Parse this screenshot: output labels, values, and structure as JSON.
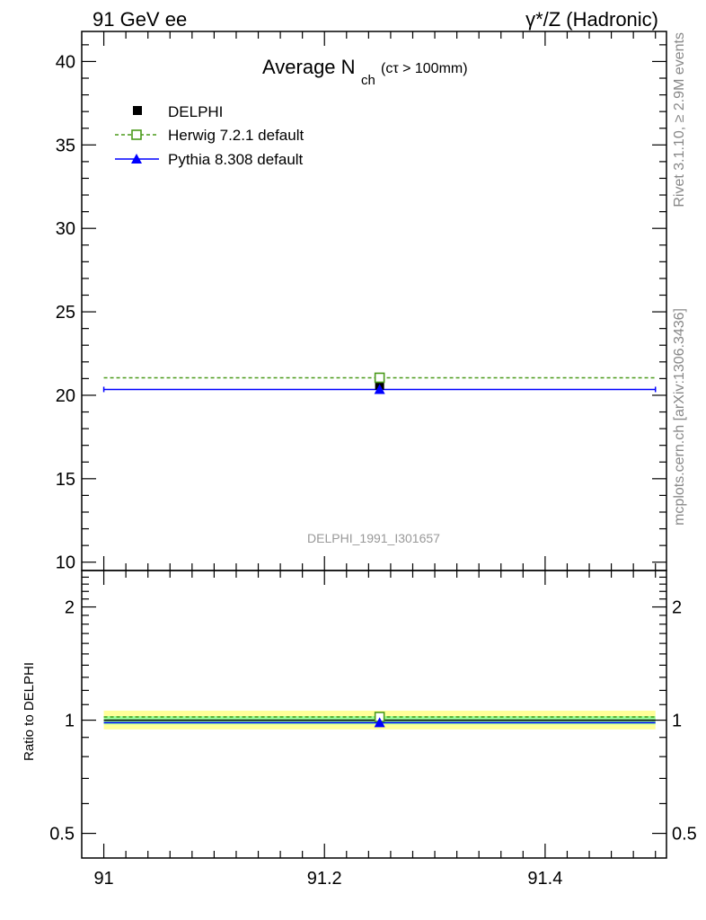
{
  "header": {
    "left": "91 GeV ee",
    "right": "γ*/Z (Hadronic)"
  },
  "title": {
    "main": "Average N",
    "sub": "ch",
    "cut": "(cτ > 100mm)"
  },
  "side_labels": {
    "rivet": "Rivet 3.1.10, ≥ 2.9M events",
    "source": "mcplots.cern.ch [arXiv:1306.3436]"
  },
  "analysis_id": "DELPHI_1991_I301657",
  "ratio_ylabel": "Ratio to DELPHI",
  "legend": [
    {
      "label": "DELPHI",
      "marker": "filled-square"
    },
    {
      "label": "Herwig 7.2.1 default",
      "marker": "open-square-dashed"
    },
    {
      "label": "Pythia 8.308 default",
      "marker": "filled-triangle"
    }
  ],
  "colors": {
    "data": "#000000",
    "herwig": "#4a9a1a",
    "pythia": "#0000ff",
    "band_outer": "#ffff99",
    "band_inner": "#99ff99"
  },
  "chart_data": [
    {
      "type": "scatter",
      "panel": "main",
      "xlim": [
        90.98,
        91.51
      ],
      "ylim": [
        9.5,
        41.8
      ],
      "xticks": [
        91,
        91.2,
        91.4
      ],
      "yticks": [
        10,
        15,
        20,
        25,
        30,
        35,
        40
      ],
      "ytick_labels": [
        "10",
        "15",
        "20",
        "25",
        "30",
        "35",
        "40"
      ],
      "series": [
        {
          "name": "DELPHI",
          "x": [
            91.25
          ],
          "y": [
            20.6
          ],
          "yerr": [
            0.3
          ]
        },
        {
          "name": "Herwig 7.2.1 default",
          "x": [
            91.25
          ],
          "y": [
            21.05
          ],
          "xrange": [
            91.0,
            91.5
          ]
        },
        {
          "name": "Pythia 8.308 default",
          "x": [
            91.25
          ],
          "y": [
            20.35
          ],
          "xrange": [
            91.0,
            91.5
          ]
        }
      ]
    },
    {
      "type": "line",
      "panel": "ratio",
      "ylabel": "Ratio to DELPHI",
      "xlim": [
        90.98,
        91.51
      ],
      "ylim": [
        0.43,
        2.5
      ],
      "log_y": true,
      "xticks": [
        91,
        91.2,
        91.4
      ],
      "xtick_labels": [
        "91",
        "91.2",
        "91.4"
      ],
      "yticks": [
        0.5,
        1,
        2
      ],
      "ytick_labels": [
        "0.5",
        "1",
        "2"
      ],
      "band_outer": [
        0.945,
        1.06
      ],
      "band_inner": [
        0.975,
        1.025
      ],
      "series": [
        {
          "name": "Herwig 7.2.1 default",
          "x": [
            91.25
          ],
          "y": [
            1.02
          ]
        },
        {
          "name": "Pythia 8.308 default",
          "x": [
            91.25
          ],
          "y": [
            0.985
          ]
        }
      ]
    }
  ]
}
